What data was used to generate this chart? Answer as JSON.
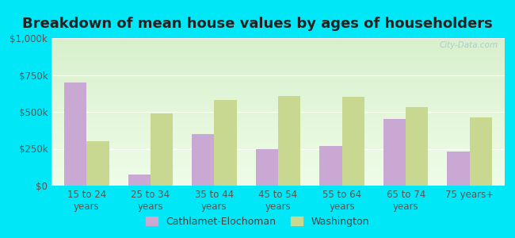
{
  "title": "Breakdown of mean house values by ages of householders",
  "categories": [
    "15 to 24\nyears",
    "25 to 34\nyears",
    "35 to 44\nyears",
    "45 to 54\nyears",
    "55 to 64\nyears",
    "65 to 74\nyears",
    "75 years+"
  ],
  "cathlamet": [
    700000,
    75000,
    350000,
    250000,
    270000,
    450000,
    230000
  ],
  "washington": [
    300000,
    490000,
    580000,
    610000,
    600000,
    530000,
    460000
  ],
  "cathlamet_color": "#c9a8d4",
  "washington_color": "#c8d890",
  "ylim": [
    0,
    1000000
  ],
  "yticks": [
    0,
    250000,
    500000,
    750000,
    1000000
  ],
  "ytick_labels": [
    "$0",
    "$250k",
    "$500k",
    "$750k",
    "$1,000k"
  ],
  "legend_cathlamet": "Cathlamet-Elochoman",
  "legend_washington": "Washington",
  "bar_width": 0.35,
  "background_outer": "#00e8f8",
  "bg_top": "#d8f0cc",
  "bg_bottom": "#eefce8",
  "watermark": "City-Data.com",
  "title_fontsize": 13,
  "tick_fontsize": 8.5,
  "legend_fontsize": 9
}
